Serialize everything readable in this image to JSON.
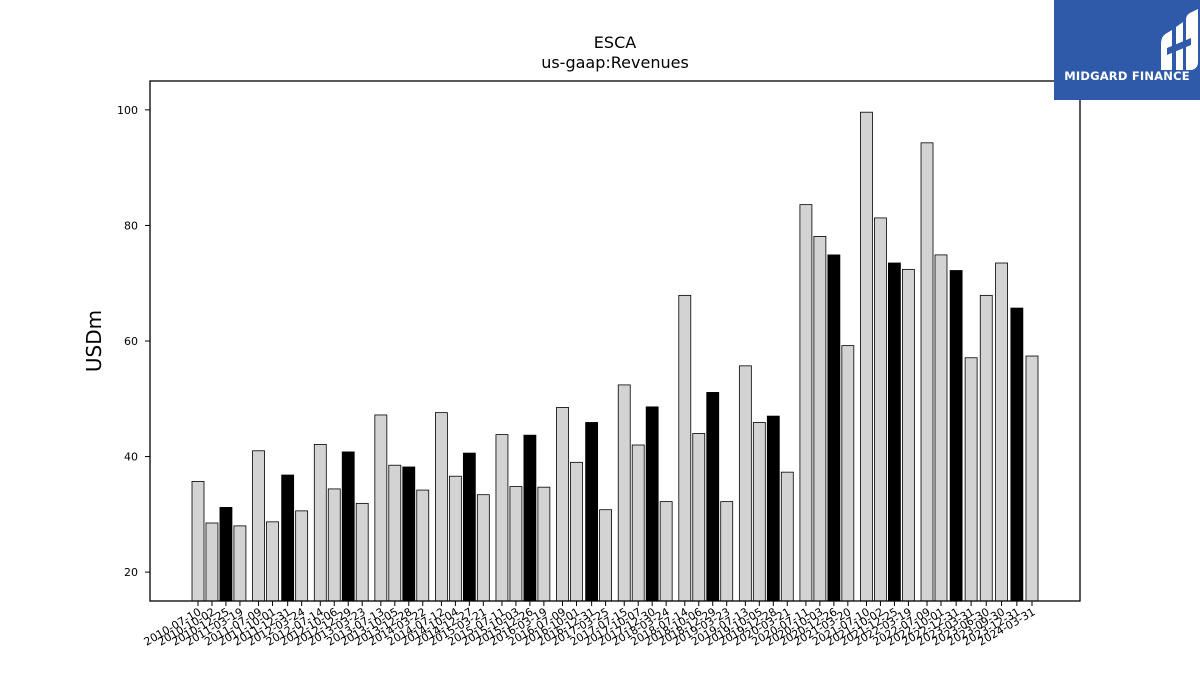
{
  "chart_data": {
    "type": "bar",
    "title": "ESCA",
    "subtitle": "us-gaap:Revenues",
    "ylabel": "USDm",
    "xlabel": "",
    "ylim": [
      15,
      105
    ],
    "yticks": [
      20,
      40,
      60,
      80,
      100
    ],
    "grid": false,
    "colors": {
      "default": "#d3d3d3",
      "highlight": "#000000",
      "edge": "#000000"
    },
    "bars": [
      {
        "date": "2010-07-10",
        "value": 35.7,
        "highlight": false
      },
      {
        "date": "2010-10-02",
        "value": 28.5,
        "highlight": false
      },
      {
        "date": "2010-12-25",
        "value": 31.2,
        "highlight": true
      },
      {
        "date": "2011-03-19",
        "value": 28.0,
        "highlight": false
      },
      {
        "date": "2011-07-09",
        "value": 41.0,
        "highlight": false
      },
      {
        "date": "2011-10-01",
        "value": 28.7,
        "highlight": false
      },
      {
        "date": "2011-12-31",
        "value": 36.8,
        "highlight": true
      },
      {
        "date": "2012-03-24",
        "value": 30.6,
        "highlight": false
      },
      {
        "date": "2012-07-14",
        "value": 42.1,
        "highlight": false
      },
      {
        "date": "2012-10-06",
        "value": 34.4,
        "highlight": false
      },
      {
        "date": "2012-12-29",
        "value": 40.8,
        "highlight": true
      },
      {
        "date": "2013-03-23",
        "value": 31.9,
        "highlight": false
      },
      {
        "date": "2013-07-13",
        "value": 47.2,
        "highlight": false
      },
      {
        "date": "2013-10-05",
        "value": 38.5,
        "highlight": false
      },
      {
        "date": "2013-12-28",
        "value": 38.2,
        "highlight": true
      },
      {
        "date": "2014-03-22",
        "value": 34.2,
        "highlight": false
      },
      {
        "date": "2014-07-12",
        "value": 47.6,
        "highlight": false
      },
      {
        "date": "2014-10-04",
        "value": 36.6,
        "highlight": false
      },
      {
        "date": "2014-12-27",
        "value": 40.6,
        "highlight": true
      },
      {
        "date": "2015-03-21",
        "value": 33.4,
        "highlight": false
      },
      {
        "date": "2015-07-11",
        "value": 43.8,
        "highlight": false
      },
      {
        "date": "2015-10-03",
        "value": 34.8,
        "highlight": false
      },
      {
        "date": "2015-12-26",
        "value": 43.7,
        "highlight": true
      },
      {
        "date": "2016-03-19",
        "value": 34.7,
        "highlight": false
      },
      {
        "date": "2016-07-09",
        "value": 48.5,
        "highlight": false
      },
      {
        "date": "2016-10-01",
        "value": 39.0,
        "highlight": false
      },
      {
        "date": "2016-12-31",
        "value": 45.9,
        "highlight": true
      },
      {
        "date": "2017-03-25",
        "value": 30.8,
        "highlight": false
      },
      {
        "date": "2017-07-15",
        "value": 52.4,
        "highlight": false
      },
      {
        "date": "2017-10-07",
        "value": 42.0,
        "highlight": false
      },
      {
        "date": "2017-12-30",
        "value": 48.6,
        "highlight": true
      },
      {
        "date": "2018-03-24",
        "value": 32.2,
        "highlight": false
      },
      {
        "date": "2018-07-14",
        "value": 67.9,
        "highlight": false
      },
      {
        "date": "2018-10-06",
        "value": 44.0,
        "highlight": false
      },
      {
        "date": "2018-12-29",
        "value": 51.1,
        "highlight": true
      },
      {
        "date": "2019-03-23",
        "value": 32.2,
        "highlight": false
      },
      {
        "date": "2019-07-13",
        "value": 55.7,
        "highlight": false
      },
      {
        "date": "2019-10-05",
        "value": 45.9,
        "highlight": false
      },
      {
        "date": "2019-12-28",
        "value": 47.0,
        "highlight": true
      },
      {
        "date": "2020-03-21",
        "value": 37.3,
        "highlight": false
      },
      {
        "date": "2020-07-11",
        "value": 83.6,
        "highlight": false
      },
      {
        "date": "2020-10-03",
        "value": 78.1,
        "highlight": false
      },
      {
        "date": "2020-12-26",
        "value": 74.9,
        "highlight": true
      },
      {
        "date": "2021-03-20",
        "value": 59.2,
        "highlight": false
      },
      {
        "date": "2021-07-10",
        "value": 99.6,
        "highlight": false
      },
      {
        "date": "2021-10-02",
        "value": 81.3,
        "highlight": false
      },
      {
        "date": "2021-12-25",
        "value": 73.5,
        "highlight": true
      },
      {
        "date": "2022-03-19",
        "value": 72.4,
        "highlight": false
      },
      {
        "date": "2022-07-09",
        "value": 94.3,
        "highlight": false
      },
      {
        "date": "2022-10-01",
        "value": 74.9,
        "highlight": false
      },
      {
        "date": "2022-12-31",
        "value": 72.2,
        "highlight": true
      },
      {
        "date": "2023-03-31",
        "value": 57.1,
        "highlight": false
      },
      {
        "date": "2023-06-30",
        "value": 67.9,
        "highlight": false
      },
      {
        "date": "2023-09-30",
        "value": 73.5,
        "highlight": false
      },
      {
        "date": "2023-12-31",
        "value": 65.7,
        "highlight": true
      },
      {
        "date": "2024-03-31",
        "value": 57.4,
        "highlight": false
      }
    ]
  },
  "logo": {
    "text": "MIDGARD FINANCE",
    "background": "#2f5aaa"
  }
}
